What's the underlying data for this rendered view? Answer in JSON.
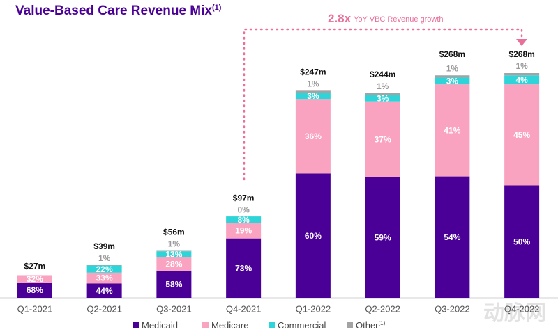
{
  "chart_data": {
    "type": "stacked_bar",
    "title": "Value-Based Care Revenue Mix",
    "title_superscript": "(1)",
    "annotation": {
      "multiple": "2.8x",
      "text": "YoY VBC Revenue growth"
    },
    "watermark": "动脉网",
    "categories": [
      "Q1-2021",
      "Q2-2021",
      "Q3-2021",
      "Q4-2021",
      "Q1-2022",
      "Q2-2022",
      "Q3-2022",
      "Q4-2022"
    ],
    "totals": {
      "values": [
        27,
        39,
        56,
        97,
        247,
        244,
        268,
        268
      ],
      "value_labels": [
        "$27m",
        "$39m",
        "$56m",
        "$97m",
        "$247m",
        "$244m",
        "$268m",
        "$268m"
      ]
    },
    "series": [
      {
        "name": "Medicaid",
        "color": "#4a0096",
        "values": [
          68,
          44,
          58,
          73,
          60,
          59,
          54,
          50
        ],
        "value_labels": [
          "68%",
          "44%",
          "58%",
          "73%",
          "60%",
          "59%",
          "54%",
          "50%"
        ]
      },
      {
        "name": "Medicare",
        "color": "#f9a3c0",
        "values": [
          32,
          33,
          28,
          19,
          36,
          37,
          41,
          45
        ],
        "value_labels": [
          "32%",
          "33%",
          "28%",
          "19%",
          "36%",
          "37%",
          "41%",
          "45%"
        ]
      },
      {
        "name": "Commercial",
        "color": "#2fd4d8",
        "values": [
          null,
          22,
          13,
          8,
          3,
          3,
          3,
          4
        ],
        "value_labels": [
          null,
          "22%",
          "13%",
          "8%",
          "3%",
          "3%",
          "3%",
          "4%"
        ]
      },
      {
        "name": "Other",
        "superscript": "(1)",
        "color": "#a3a3a3",
        "values": [
          null,
          1,
          1,
          0,
          1,
          1,
          1,
          1
        ],
        "value_labels": [
          null,
          "1%",
          "1%",
          "0%",
          "1%",
          "1%",
          "1%",
          "1%"
        ]
      }
    ]
  }
}
